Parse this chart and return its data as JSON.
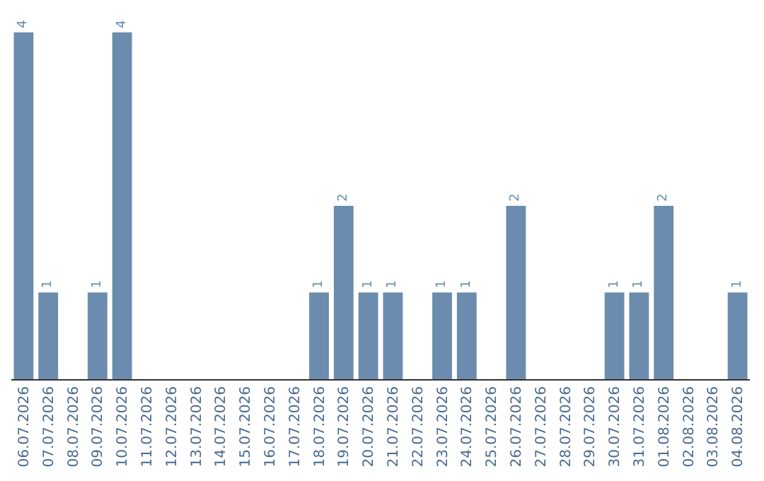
{
  "chart_data": {
    "type": "bar",
    "categories": [
      "06.07.2026",
      "07.07.2026",
      "08.07.2026",
      "09.07.2026",
      "10.07.2026",
      "11.07.2026",
      "12.07.2026",
      "13.07.2026",
      "14.07.2026",
      "15.07.2026",
      "16.07.2026",
      "17.07.2026",
      "18.07.2026",
      "19.07.2026",
      "20.07.2026",
      "21.07.2026",
      "22.07.2026",
      "23.07.2026",
      "24.07.2026",
      "25.07.2026",
      "26.07.2026",
      "27.07.2026",
      "28.07.2026",
      "29.07.2026",
      "30.07.2026",
      "31.07.2026",
      "01.08.2026",
      "02.08.2026",
      "03.08.2026",
      "04.08.2026"
    ],
    "values": [
      4,
      1,
      0,
      1,
      4,
      0,
      0,
      0,
      0,
      0,
      0,
      0,
      1,
      2,
      1,
      1,
      0,
      1,
      1,
      0,
      2,
      0,
      0,
      0,
      1,
      1,
      2,
      0,
      0,
      1
    ],
    "value_labels": [
      "4",
      "1",
      null,
      "1",
      "4",
      null,
      null,
      null,
      null,
      null,
      null,
      null,
      "1",
      "2",
      "1",
      "1",
      null,
      "1",
      "1",
      null,
      "2",
      null,
      null,
      null,
      "1",
      "1",
      "2",
      null,
      null,
      "1"
    ],
    "color": "#6b8cae",
    "legend": false
  }
}
